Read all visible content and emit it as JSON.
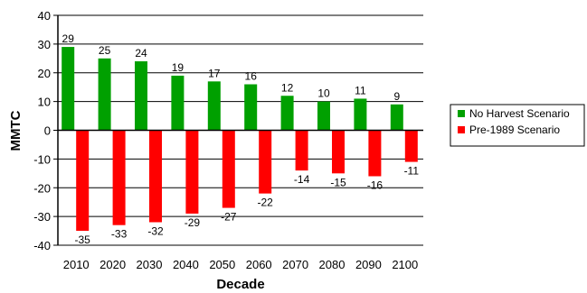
{
  "chart_data": {
    "type": "bar",
    "categories": [
      "2010",
      "2020",
      "2030",
      "2040",
      "2050",
      "2060",
      "2070",
      "2080",
      "2090",
      "2100"
    ],
    "series": [
      {
        "name": "No Harvest Scenario",
        "color": "#00a000",
        "values": [
          29,
          25,
          24,
          19,
          17,
          16,
          12,
          10,
          11,
          9
        ]
      },
      {
        "name": "Pre-1989 Scenario",
        "color": "#ff0000",
        "values": [
          -35,
          -33,
          -32,
          -29,
          -27,
          -22,
          -14,
          -15,
          -16,
          -11
        ]
      }
    ],
    "xlabel": "Decade",
    "ylabel": "MMTC",
    "ylim": [
      -40,
      40
    ],
    "yticks": [
      -40,
      -30,
      -20,
      -10,
      0,
      10,
      20,
      30,
      40
    ],
    "grid": true,
    "legend_position": "right"
  }
}
